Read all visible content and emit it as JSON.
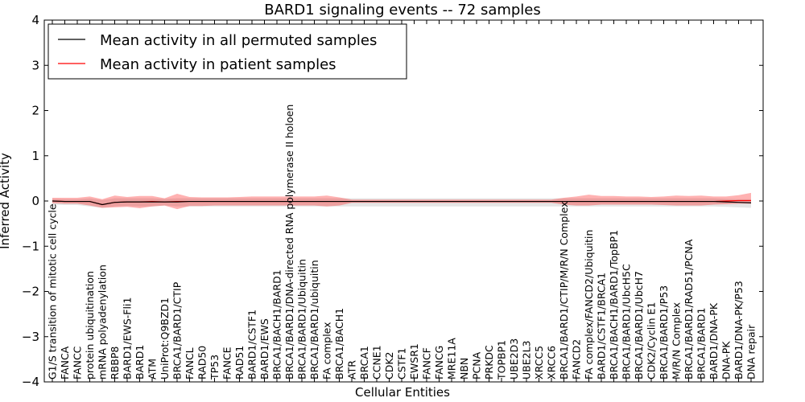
{
  "chart_data": {
    "type": "line",
    "title": "BARD1 signaling events -- 72 samples",
    "xlabel": "Cellular Entities",
    "ylabel": "Inferred Activity",
    "ylim": [
      -4,
      4
    ],
    "yticks": [
      "4",
      "3",
      "2",
      "1",
      "0",
      "−1",
      "−2",
      "−3",
      "−4"
    ],
    "ytick_values": [
      4,
      3,
      2,
      1,
      0,
      -1,
      -2,
      -3,
      -4
    ],
    "grid": false,
    "legend": {
      "placement": "top-left",
      "entries": [
        {
          "label": "Mean activity in all permuted samples",
          "color": "#000000"
        },
        {
          "label": "Mean activity in patient samples",
          "color": "#ff0000"
        }
      ]
    },
    "categories": [
      "G1/S transition of mitotic cell cycle",
      "FANCA",
      "FANCC",
      "protein ubiquitination",
      "mRNA polyadenylation",
      "RBBP8",
      "BARD1/EWS-Fli1",
      "BARD1",
      "ATM",
      "UniProt:Q9BZD1",
      "BRCA1/BARD1/CTIP",
      "FANCL",
      "RAD50",
      "TP53",
      "FANCE",
      "RAD51",
      "BARD1/CSTF1",
      "BARD1/EWS",
      "BRCA1/BACH1/BARD1",
      "BRCA1/BARD1/DNA-directed RNA polymerase II holoen",
      "BRCA1/BARD1/Ubiquitin",
      "BRCA1/BARD1/ubiquitin",
      "FA complex",
      "BRCA1/BACH1",
      "ATR",
      "BRCA1",
      "CCNE1",
      "CDK2",
      "CSTF1",
      "EWSR1",
      "FANCF",
      "FANCG",
      "MRE11A",
      "NBN",
      "PCNA",
      "PRKDC",
      "TOPBP1",
      "UBE2D3",
      "UBE2L3",
      "XRCC5",
      "XRCC6",
      "BRCA1/BARD1/CTIP/M/R/N Complex",
      "FANCD2",
      "FA complex/FANCD2/Ubiquitin",
      "BARD1/CSTF1/BRCA1",
      "BRCA1/BACH1/BARD1/TopBP1",
      "BRCA1/BARD1/UbcH5C",
      "BRCA1/BARD1/UbcH7",
      "CDK2/Cyclin E1",
      "BRCA1/BARD1/P53",
      "M/R/N Complex",
      "BRCA1/BARD1/RAD51/PCNA",
      "BRCA1/BARD1",
      "BARD1/DNA-PK",
      "DNA-PK",
      "BARD1/DNA-PK/P53",
      "DNA repair"
    ],
    "series": [
      {
        "name": "Mean activity in all permuted samples",
        "color": "#000000",
        "values": [
          0.0,
          -0.01,
          -0.01,
          -0.01,
          -0.08,
          -0.03,
          -0.02,
          -0.02,
          -0.02,
          -0.02,
          -0.02,
          -0.01,
          -0.01,
          -0.01,
          -0.01,
          -0.01,
          -0.01,
          -0.01,
          -0.01,
          -0.01,
          -0.01,
          -0.01,
          -0.01,
          -0.01,
          -0.01,
          -0.01,
          -0.01,
          -0.01,
          -0.01,
          -0.01,
          -0.01,
          -0.01,
          -0.01,
          -0.01,
          -0.01,
          -0.01,
          -0.01,
          -0.01,
          -0.01,
          -0.01,
          -0.01,
          -0.01,
          -0.01,
          -0.01,
          -0.01,
          -0.01,
          -0.01,
          -0.01,
          -0.01,
          -0.01,
          -0.01,
          -0.01,
          -0.01,
          -0.01,
          -0.02,
          -0.03,
          -0.04
        ],
        "band_upper": [
          0.05,
          0.04,
          0.04,
          0.06,
          0.02,
          0.06,
          0.06,
          0.06,
          0.06,
          0.05,
          0.06,
          0.06,
          0.06,
          0.06,
          0.06,
          0.06,
          0.06,
          0.06,
          0.06,
          0.06,
          0.06,
          0.06,
          0.06,
          0.06,
          0.06,
          0.06,
          0.06,
          0.06,
          0.06,
          0.06,
          0.06,
          0.06,
          0.06,
          0.06,
          0.06,
          0.06,
          0.06,
          0.06,
          0.06,
          0.06,
          0.06,
          0.06,
          0.06,
          0.06,
          0.06,
          0.06,
          0.06,
          0.06,
          0.06,
          0.06,
          0.06,
          0.06,
          0.06,
          0.06,
          0.05,
          0.04,
          0.04
        ],
        "band_lower": [
          -0.08,
          -0.09,
          -0.09,
          -0.12,
          -0.15,
          -0.12,
          -0.11,
          -0.12,
          -0.12,
          -0.1,
          -0.12,
          -0.12,
          -0.12,
          -0.12,
          -0.12,
          -0.12,
          -0.12,
          -0.12,
          -0.12,
          -0.12,
          -0.12,
          -0.12,
          -0.12,
          -0.12,
          -0.12,
          -0.12,
          -0.12,
          -0.12,
          -0.12,
          -0.12,
          -0.12,
          -0.12,
          -0.12,
          -0.12,
          -0.12,
          -0.12,
          -0.12,
          -0.12,
          -0.12,
          -0.12,
          -0.12,
          -0.12,
          -0.12,
          -0.12,
          -0.12,
          -0.12,
          -0.12,
          -0.12,
          -0.12,
          -0.12,
          -0.12,
          -0.12,
          -0.12,
          -0.12,
          -0.13,
          -0.14,
          -0.15
        ]
      },
      {
        "name": "Mean activity in patient samples",
        "color": "#ff0000",
        "values": [
          0.0,
          -0.01,
          -0.01,
          -0.01,
          -0.08,
          -0.03,
          -0.02,
          -0.02,
          -0.01,
          -0.02,
          -0.01,
          -0.01,
          -0.01,
          -0.01,
          -0.01,
          -0.01,
          -0.01,
          -0.01,
          -0.01,
          -0.01,
          -0.01,
          -0.01,
          -0.01,
          -0.01,
          -0.01,
          -0.01,
          -0.01,
          -0.01,
          -0.01,
          -0.01,
          -0.01,
          -0.01,
          -0.01,
          -0.01,
          -0.01,
          -0.01,
          -0.01,
          -0.01,
          -0.01,
          -0.01,
          -0.01,
          -0.01,
          -0.01,
          -0.01,
          -0.01,
          -0.01,
          -0.01,
          -0.01,
          -0.01,
          -0.01,
          -0.01,
          -0.01,
          -0.01,
          -0.01,
          0.0,
          0.01,
          0.01
        ],
        "band_upper": [
          0.07,
          0.07,
          0.07,
          0.1,
          0.04,
          0.12,
          0.09,
          0.11,
          0.11,
          0.06,
          0.16,
          0.09,
          0.08,
          0.08,
          0.08,
          0.09,
          0.1,
          0.1,
          0.1,
          0.1,
          0.1,
          0.1,
          0.12,
          0.08,
          0.03,
          0.03,
          0.03,
          0.03,
          0.03,
          0.03,
          0.03,
          0.03,
          0.03,
          0.03,
          0.03,
          0.03,
          0.03,
          0.03,
          0.03,
          0.03,
          0.03,
          0.07,
          0.1,
          0.14,
          0.11,
          0.11,
          0.1,
          0.1,
          0.09,
          0.1,
          0.12,
          0.11,
          0.12,
          0.1,
          0.1,
          0.13,
          0.18
        ],
        "band_lower": [
          -0.05,
          -0.06,
          -0.06,
          -0.1,
          -0.15,
          -0.14,
          -0.13,
          -0.16,
          -0.12,
          -0.1,
          -0.18,
          -0.11,
          -0.11,
          -0.1,
          -0.1,
          -0.1,
          -0.1,
          -0.1,
          -0.1,
          -0.1,
          -0.1,
          -0.1,
          -0.12,
          -0.1,
          -0.04,
          -0.04,
          -0.04,
          -0.04,
          -0.04,
          -0.04,
          -0.04,
          -0.04,
          -0.04,
          -0.04,
          -0.04,
          -0.04,
          -0.04,
          -0.04,
          -0.04,
          -0.04,
          -0.04,
          -0.08,
          -0.1,
          -0.1,
          -0.08,
          -0.08,
          -0.08,
          -0.08,
          -0.08,
          -0.09,
          -0.1,
          -0.1,
          -0.1,
          -0.08,
          -0.07,
          -0.06,
          -0.06
        ]
      }
    ]
  }
}
